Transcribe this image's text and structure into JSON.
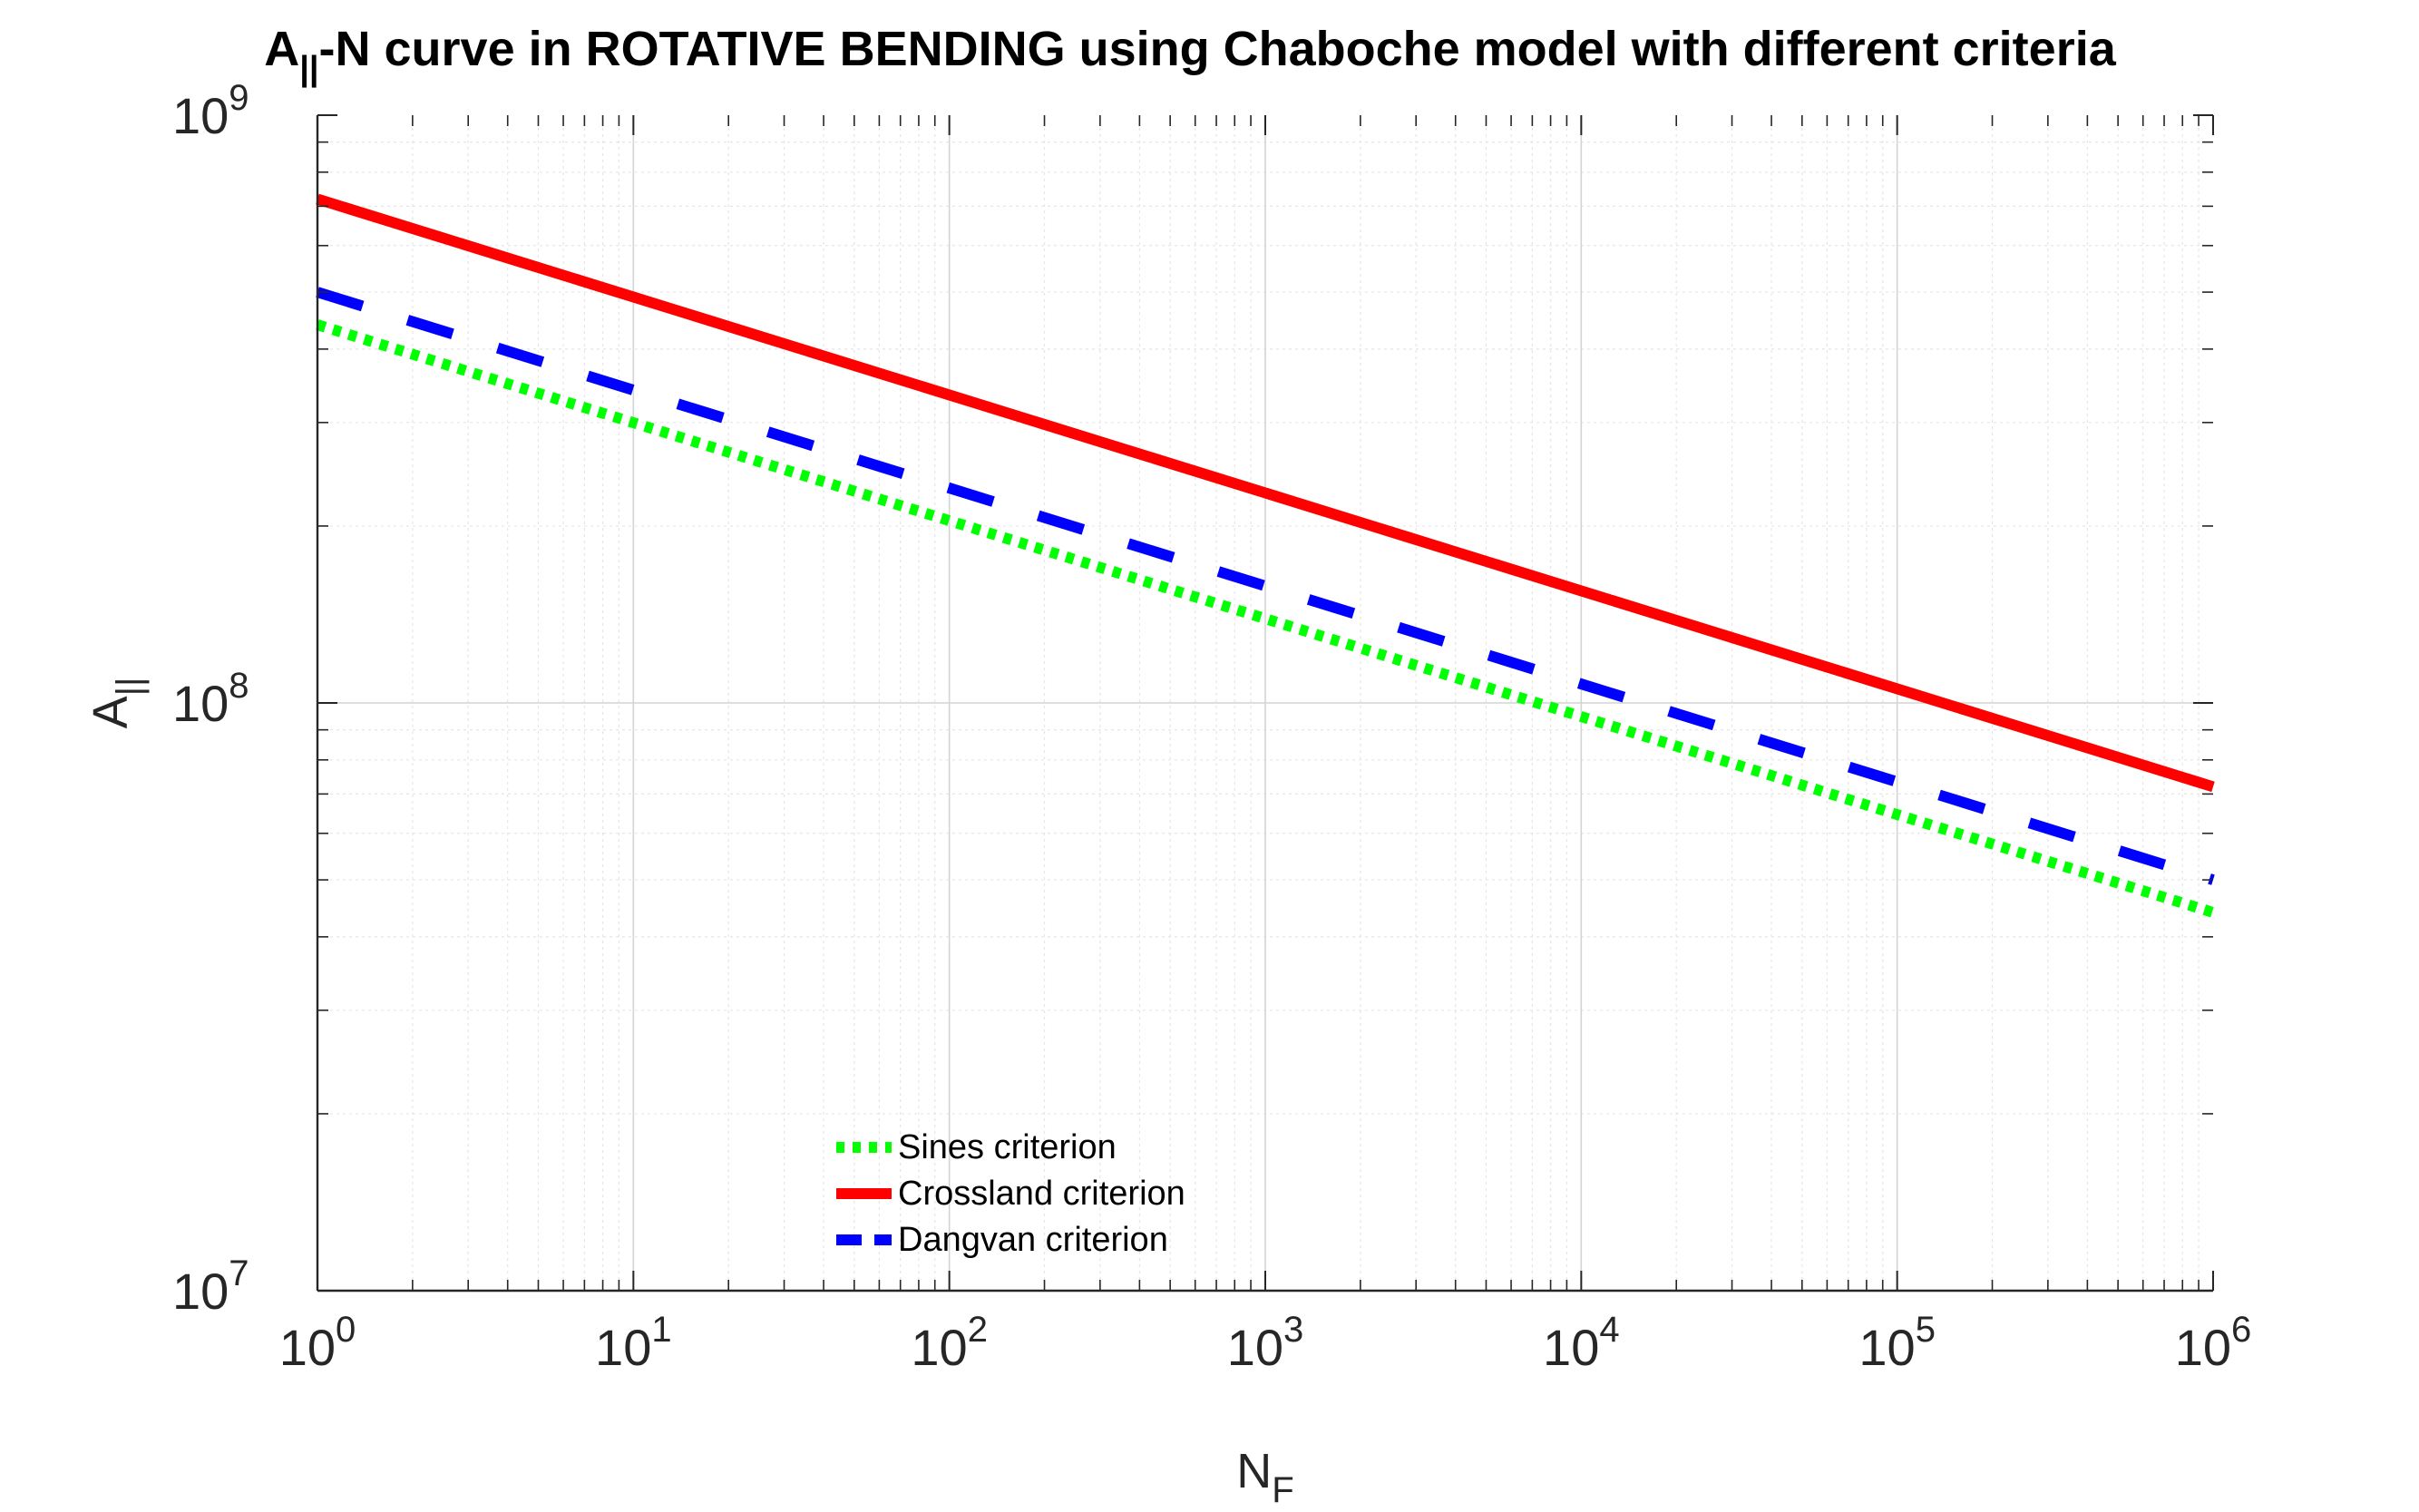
{
  "chart_data": {
    "type": "line",
    "title": {
      "prefix": "A",
      "prefix_sub": "||",
      "rest": "-N curve in ROTATIVE BENDING using Chaboche model with different criteria"
    },
    "xlabel": {
      "main": "N",
      "sub": "F"
    },
    "ylabel": {
      "main": "A",
      "sub": "||"
    },
    "x_scale": "log",
    "y_scale": "log",
    "xlim": [
      1,
      1000000
    ],
    "ylim": [
      10000000,
      1000000000
    ],
    "x_ticks": [
      {
        "base": "10",
        "exp": "0"
      },
      {
        "base": "10",
        "exp": "1"
      },
      {
        "base": "10",
        "exp": "2"
      },
      {
        "base": "10",
        "exp": "3"
      },
      {
        "base": "10",
        "exp": "4"
      },
      {
        "base": "10",
        "exp": "5"
      },
      {
        "base": "10",
        "exp": "6"
      }
    ],
    "y_ticks": [
      {
        "base": "10",
        "exp": "7"
      },
      {
        "base": "10",
        "exp": "8"
      },
      {
        "base": "10",
        "exp": "9"
      }
    ],
    "grid": true,
    "minor_grid": true,
    "legend_position": "lower-center-left",
    "series": [
      {
        "name": "Sines criterion",
        "color": "#00ff00",
        "style": "dotted",
        "x": [
          1,
          1000000
        ],
        "values": [
          440000000,
          44000000
        ]
      },
      {
        "name": "Crossland criterion",
        "color": "#ff0000",
        "style": "solid",
        "x": [
          1,
          1000000
        ],
        "values": [
          720000000,
          72000000
        ]
      },
      {
        "name": "Dangvan criterion",
        "color": "#0000ff",
        "style": "dashed",
        "x": [
          1,
          1000000
        ],
        "values": [
          500000000,
          50000000
        ]
      }
    ]
  }
}
